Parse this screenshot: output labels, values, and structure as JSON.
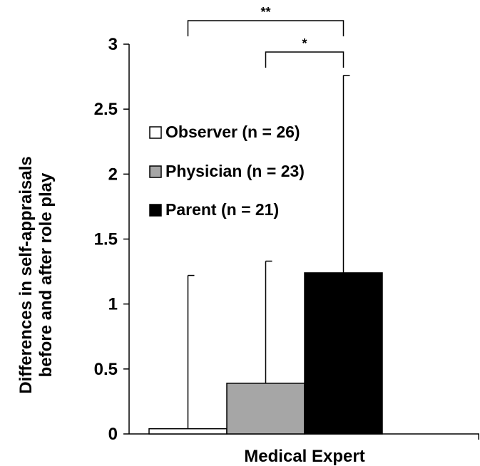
{
  "chart_data": {
    "type": "bar",
    "title": "",
    "xlabel": "Medical Expert",
    "ylabel": [
      "Differences in self-appraisals",
      "before and after role play"
    ],
    "ylim": [
      0,
      3
    ],
    "yticks": [
      "0",
      "0.5",
      "1",
      "1.5",
      "2",
      "2.5",
      "3"
    ],
    "ytick_values": [
      0,
      0.5,
      1,
      1.5,
      2,
      2.5,
      3
    ],
    "categories": [
      "Medical Expert"
    ],
    "legend_position": "upper-left",
    "grid": false,
    "series": [
      {
        "name": "Observer (n = 26)",
        "value": 0.04,
        "error": 1.18,
        "color": "#ffffff"
      },
      {
        "name": "Physician (n = 23)",
        "value": 0.39,
        "error": 0.94,
        "color": "#a6a6a6"
      },
      {
        "name": "Parent (n = 21)",
        "value": 1.24,
        "error": 1.52,
        "color": "#000000"
      }
    ],
    "significance": [
      {
        "label": "**",
        "from": "Observer (n = 26)",
        "to": "Parent (n = 21)"
      },
      {
        "label": "*",
        "from": "Physician (n = 23)",
        "to": "Parent (n = 21)"
      }
    ]
  }
}
